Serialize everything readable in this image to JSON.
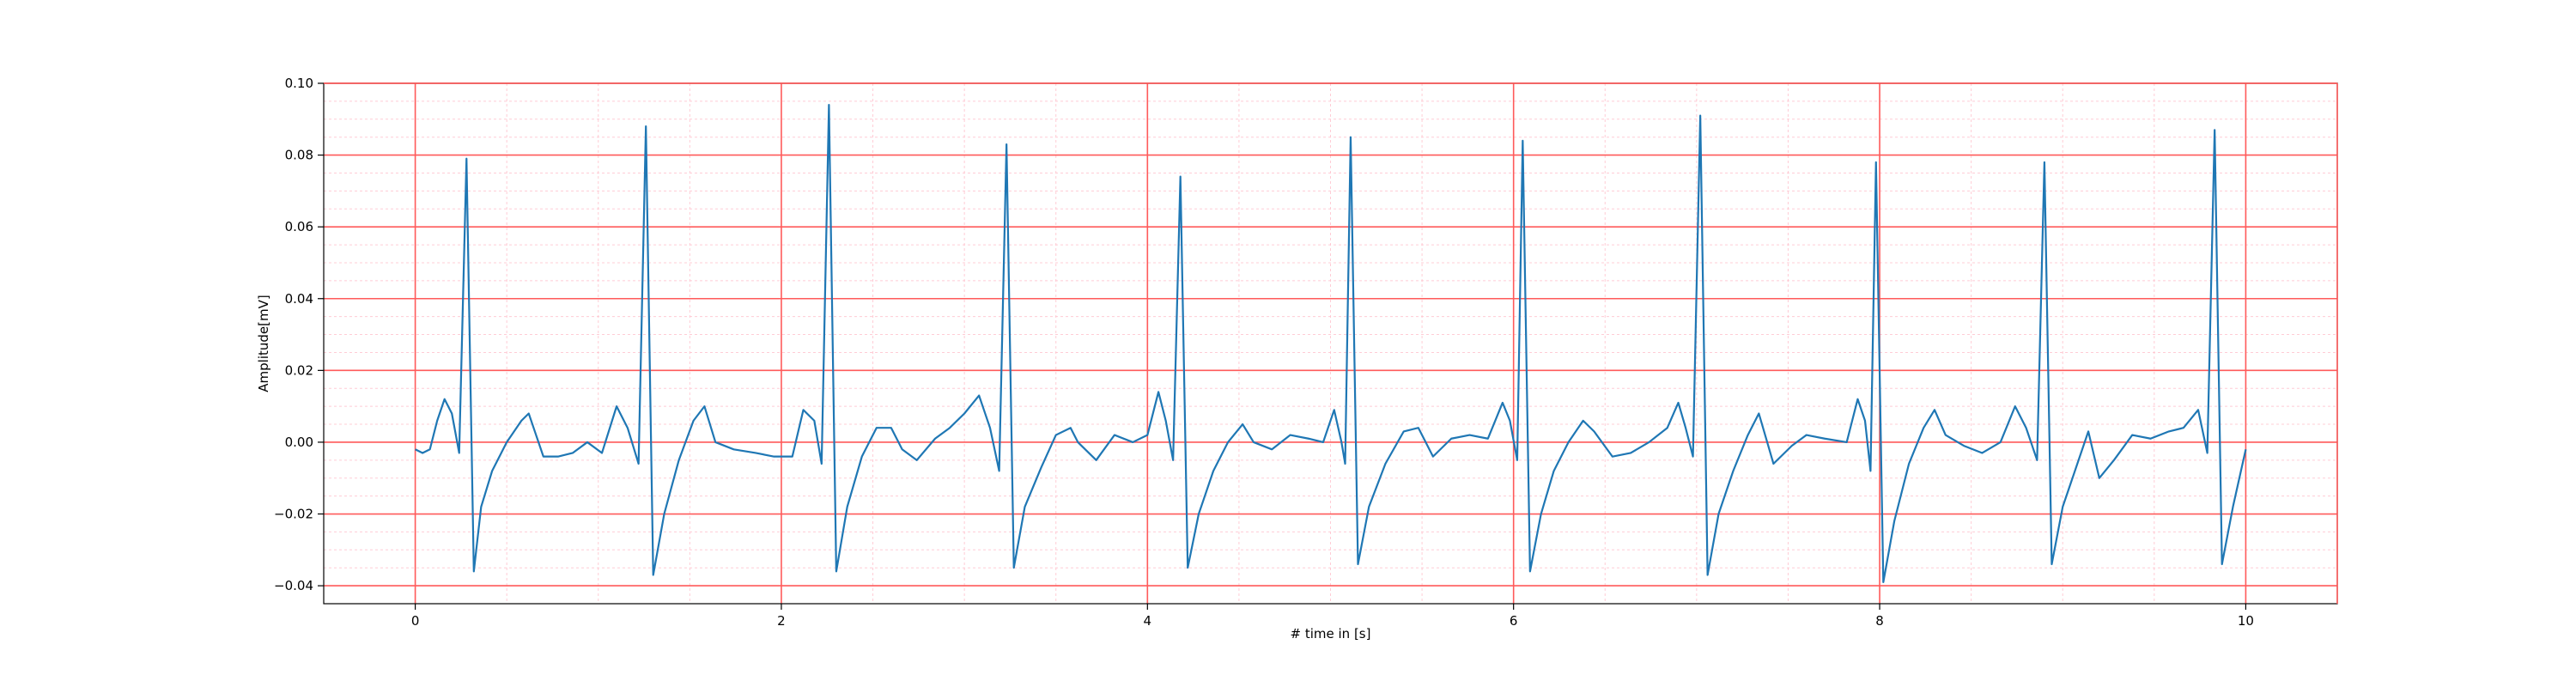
{
  "chart_data": {
    "type": "line",
    "title": "",
    "xlabel": "# time in [s]",
    "ylabel": "Amplitude[mV]",
    "xlim": [
      -0.5,
      10.5
    ],
    "ylim": [
      -0.045,
      0.1
    ],
    "x_ticks": [
      0,
      2,
      4,
      6,
      8,
      10
    ],
    "x_tick_labels": [
      "0",
      "2",
      "4",
      "6",
      "8",
      "10"
    ],
    "y_ticks": [
      -0.04,
      -0.02,
      0.0,
      0.02,
      0.04,
      0.06,
      0.08,
      0.1
    ],
    "y_tick_labels": [
      "−0.04",
      "−0.02",
      "0.00",
      "0.02",
      "0.04",
      "0.06",
      "0.08",
      "0.10"
    ],
    "grid": {
      "major": true,
      "minor": true,
      "major_color": "#ff5a5a",
      "minor_color": "#ffc0cb",
      "x_major_step": 2,
      "y_major_step": 0.02,
      "x_minor_step": 0.5,
      "y_minor_step": 0.005
    },
    "line_color": "#1f77b4",
    "sampling_note": "",
    "beats": [
      {
        "x": 0.28,
        "peak": 0.079,
        "trough": -0.036
      },
      {
        "x": 1.26,
        "peak": 0.088,
        "trough": -0.037
      },
      {
        "x": 2.26,
        "peak": 0.094,
        "trough": -0.036
      },
      {
        "x": 3.23,
        "peak": 0.083,
        "trough": -0.035
      },
      {
        "x": 4.18,
        "peak": 0.074,
        "trough": -0.035
      },
      {
        "x": 5.11,
        "peak": 0.085,
        "trough": -0.034
      },
      {
        "x": 6.05,
        "peak": 0.084,
        "trough": -0.036
      },
      {
        "x": 7.02,
        "peak": 0.091,
        "trough": -0.037
      },
      {
        "x": 7.98,
        "peak": 0.078,
        "trough": -0.039
      },
      {
        "x": 8.9,
        "peak": 0.078,
        "trough": -0.034
      },
      {
        "x": 9.83,
        "peak": 0.087,
        "trough": -0.034
      }
    ],
    "series": [
      {
        "values_xy": [
          [
            0.0,
            -0.002
          ],
          [
            0.04,
            -0.003
          ],
          [
            0.08,
            -0.002
          ],
          [
            0.12,
            0.006
          ],
          [
            0.16,
            0.012
          ],
          [
            0.2,
            0.008
          ],
          [
            0.24,
            -0.003
          ],
          [
            0.28,
            0.079
          ],
          [
            0.32,
            -0.036
          ],
          [
            0.36,
            -0.018
          ],
          [
            0.42,
            -0.008
          ],
          [
            0.5,
            0.0
          ],
          [
            0.58,
            0.006
          ],
          [
            0.62,
            0.008
          ],
          [
            0.66,
            0.002
          ],
          [
            0.7,
            -0.004
          ],
          [
            0.78,
            -0.004
          ],
          [
            0.86,
            -0.003
          ],
          [
            0.94,
            0.0
          ],
          [
            1.02,
            -0.003
          ],
          [
            1.1,
            0.01
          ],
          [
            1.16,
            0.004
          ],
          [
            1.22,
            -0.006
          ],
          [
            1.26,
            0.088
          ],
          [
            1.3,
            -0.037
          ],
          [
            1.36,
            -0.02
          ],
          [
            1.44,
            -0.005
          ],
          [
            1.52,
            0.006
          ],
          [
            1.58,
            0.01
          ],
          [
            1.64,
            0.0
          ],
          [
            1.74,
            -0.002
          ],
          [
            1.86,
            -0.003
          ],
          [
            1.96,
            -0.004
          ],
          [
            2.06,
            -0.004
          ],
          [
            2.12,
            0.009
          ],
          [
            2.18,
            0.006
          ],
          [
            2.22,
            -0.006
          ],
          [
            2.26,
            0.094
          ],
          [
            2.3,
            -0.036
          ],
          [
            2.36,
            -0.018
          ],
          [
            2.44,
            -0.004
          ],
          [
            2.52,
            0.004
          ],
          [
            2.6,
            0.004
          ],
          [
            2.66,
            -0.002
          ],
          [
            2.74,
            -0.005
          ],
          [
            2.84,
            0.001
          ],
          [
            2.92,
            0.004
          ],
          [
            3.0,
            0.008
          ],
          [
            3.08,
            0.013
          ],
          [
            3.14,
            0.004
          ],
          [
            3.19,
            -0.008
          ],
          [
            3.23,
            0.083
          ],
          [
            3.27,
            -0.035
          ],
          [
            3.33,
            -0.018
          ],
          [
            3.42,
            -0.007
          ],
          [
            3.5,
            0.002
          ],
          [
            3.58,
            0.004
          ],
          [
            3.62,
            0.0
          ],
          [
            3.72,
            -0.005
          ],
          [
            3.82,
            0.002
          ],
          [
            3.92,
            0.0
          ],
          [
            4.0,
            0.002
          ],
          [
            4.06,
            0.014
          ],
          [
            4.1,
            0.006
          ],
          [
            4.14,
            -0.005
          ],
          [
            4.18,
            0.074
          ],
          [
            4.22,
            -0.035
          ],
          [
            4.28,
            -0.02
          ],
          [
            4.36,
            -0.008
          ],
          [
            4.44,
            0.0
          ],
          [
            4.52,
            0.005
          ],
          [
            4.58,
            0.0
          ],
          [
            4.68,
            -0.002
          ],
          [
            4.78,
            0.002
          ],
          [
            4.88,
            0.001
          ],
          [
            4.96,
            0.0
          ],
          [
            5.02,
            0.009
          ],
          [
            5.06,
            0.0
          ],
          [
            5.08,
            -0.006
          ],
          [
            5.11,
            0.085
          ],
          [
            5.15,
            -0.034
          ],
          [
            5.21,
            -0.018
          ],
          [
            5.3,
            -0.006
          ],
          [
            5.4,
            0.003
          ],
          [
            5.48,
            0.004
          ],
          [
            5.56,
            -0.004
          ],
          [
            5.66,
            0.001
          ],
          [
            5.76,
            0.002
          ],
          [
            5.86,
            0.001
          ],
          [
            5.94,
            0.011
          ],
          [
            5.98,
            0.006
          ],
          [
            6.02,
            -0.005
          ],
          [
            6.05,
            0.084
          ],
          [
            6.09,
            -0.036
          ],
          [
            6.15,
            -0.02
          ],
          [
            6.22,
            -0.008
          ],
          [
            6.3,
            0.0
          ],
          [
            6.38,
            0.006
          ],
          [
            6.44,
            0.003
          ],
          [
            6.54,
            -0.004
          ],
          [
            6.64,
            -0.003
          ],
          [
            6.74,
            0.0
          ],
          [
            6.84,
            0.004
          ],
          [
            6.9,
            0.011
          ],
          [
            6.94,
            0.004
          ],
          [
            6.98,
            -0.004
          ],
          [
            7.02,
            0.091
          ],
          [
            7.06,
            -0.037
          ],
          [
            7.12,
            -0.02
          ],
          [
            7.2,
            -0.008
          ],
          [
            7.28,
            0.002
          ],
          [
            7.34,
            0.008
          ],
          [
            7.42,
            -0.006
          ],
          [
            7.52,
            -0.001
          ],
          [
            7.6,
            0.002
          ],
          [
            7.7,
            0.001
          ],
          [
            7.82,
            0.0
          ],
          [
            7.88,
            0.012
          ],
          [
            7.92,
            0.006
          ],
          [
            7.95,
            -0.008
          ],
          [
            7.98,
            0.078
          ],
          [
            8.02,
            -0.039
          ],
          [
            8.08,
            -0.022
          ],
          [
            8.16,
            -0.006
          ],
          [
            8.24,
            0.004
          ],
          [
            8.3,
            0.009
          ],
          [
            8.36,
            0.002
          ],
          [
            8.46,
            -0.001
          ],
          [
            8.56,
            -0.003
          ],
          [
            8.66,
            0.0
          ],
          [
            8.74,
            0.01
          ],
          [
            8.8,
            0.004
          ],
          [
            8.86,
            -0.005
          ],
          [
            8.9,
            0.078
          ],
          [
            8.94,
            -0.034
          ],
          [
            9.0,
            -0.018
          ],
          [
            9.08,
            -0.006
          ],
          [
            9.14,
            0.003
          ],
          [
            9.2,
            -0.01
          ],
          [
            9.28,
            -0.005
          ],
          [
            9.38,
            0.002
          ],
          [
            9.48,
            0.001
          ],
          [
            9.58,
            0.003
          ],
          [
            9.66,
            0.004
          ],
          [
            9.74,
            0.009
          ],
          [
            9.79,
            -0.003
          ],
          [
            9.83,
            0.087
          ],
          [
            9.87,
            -0.034
          ],
          [
            9.93,
            -0.018
          ],
          [
            10.0,
            -0.002
          ]
        ]
      }
    ]
  }
}
